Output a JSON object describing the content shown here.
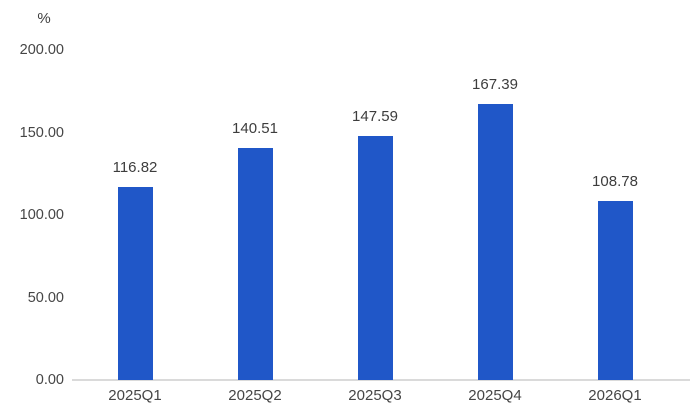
{
  "chart_data": {
    "type": "bar",
    "title": "",
    "unit_label": "%",
    "categories": [
      "2025Q1",
      "2025Q2",
      "2025Q3",
      "2025Q4",
      "2026Q1"
    ],
    "values": [
      116.82,
      140.51,
      147.59,
      167.39,
      108.78
    ],
    "value_labels": [
      "116.82",
      "140.51",
      "147.59",
      "167.39",
      "108.78"
    ],
    "series_name": "",
    "xlabel": "",
    "ylabel": "%",
    "ylim": [
      0,
      200
    ],
    "y_ticks": [
      {
        "value": 200,
        "label": "200.00"
      },
      {
        "value": 150,
        "label": "150.00"
      },
      {
        "value": 100,
        "label": "100.00"
      },
      {
        "value": 50,
        "label": "50.00"
      },
      {
        "value": 0,
        "label": "0.00"
      }
    ],
    "grid": false,
    "legend_position": "none",
    "colors": {
      "bar": "#2057C8",
      "axis_line": "#DADADA",
      "text": "#404040",
      "background": "#FFFFFF"
    }
  }
}
